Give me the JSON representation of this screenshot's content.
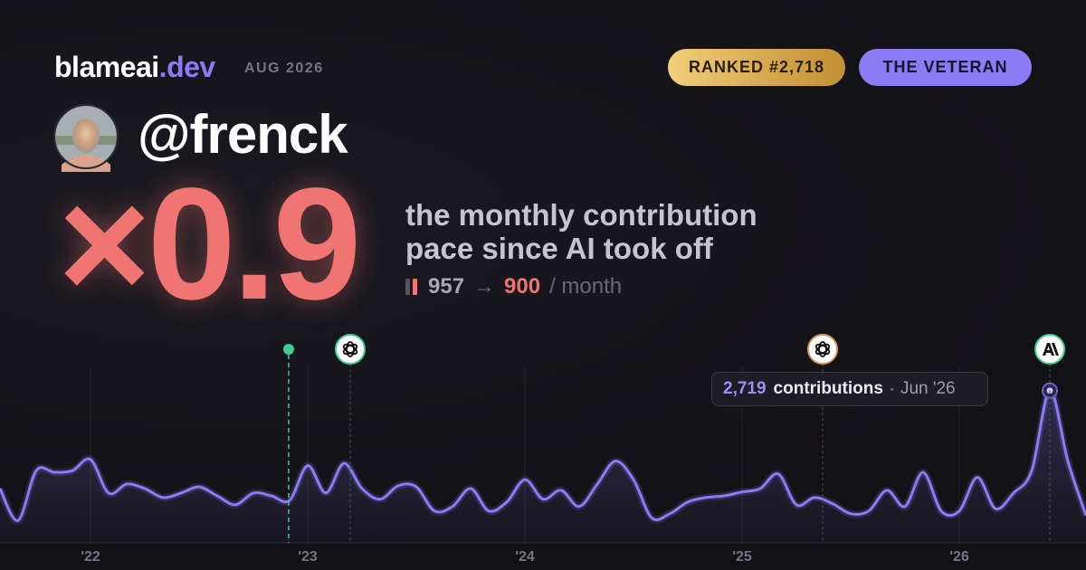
{
  "header": {
    "brand": "blameai",
    "brand_tld": ".dev",
    "period": "AUG 2026",
    "rank_badge": "RANKED #2,718",
    "title_badge": "THE VETERAN"
  },
  "profile": {
    "handle": "@frenck"
  },
  "headline": {
    "multiplier": "×0.9",
    "caption_line1": "the monthly contribution",
    "caption_line2": "pace since AI took off",
    "before": 957,
    "arrow": "→",
    "after": 900,
    "unit": "/ month"
  },
  "chart_data": {
    "type": "line",
    "categories": [
      null,
      null,
      null,
      null,
      null,
      "'22",
      null,
      null,
      null,
      null,
      null,
      null,
      null,
      null,
      null,
      null,
      null,
      "'23",
      null,
      null,
      null,
      null,
      null,
      null,
      null,
      null,
      null,
      null,
      null,
      "'24",
      null,
      null,
      null,
      null,
      null,
      null,
      null,
      null,
      null,
      null,
      null,
      "'25",
      null,
      null,
      null,
      null,
      null,
      null,
      null,
      null,
      null,
      null,
      null,
      "'26",
      null,
      null,
      null,
      null,
      null,
      null,
      null
    ],
    "series": [
      {
        "color": "#8b7cf6",
        "values": [
          970,
          400,
          1290,
          1260,
          1290,
          1490,
          890,
          1050,
          970,
          810,
          890,
          1000,
          840,
          680,
          890,
          840,
          760,
          1380,
          890,
          1420,
          970,
          780,
          1020,
          1000,
          570,
          650,
          970,
          570,
          730,
          1130,
          780,
          940,
          650,
          1050,
          1460,
          1130,
          450,
          520,
          730,
          810,
          840,
          910,
          970,
          1230,
          680,
          810,
          700,
          520,
          570,
          940,
          650,
          1260,
          570,
          570,
          1170,
          610,
          890,
          1290,
          2719,
          1460,
          490
        ],
        "value_labels": [
          null,
          null,
          null,
          null,
          null,
          null,
          null,
          null,
          null,
          null,
          null,
          null,
          null,
          null,
          null,
          null,
          null,
          null,
          null,
          null,
          null,
          null,
          null,
          null,
          null,
          null,
          null,
          null,
          null,
          null,
          null,
          null,
          null,
          null,
          null,
          null,
          null,
          null,
          null,
          null,
          null,
          null,
          null,
          null,
          null,
          null,
          null,
          null,
          null,
          null,
          null,
          null,
          null,
          null,
          null,
          null,
          null,
          null,
          "2,719",
          null,
          null
        ]
      }
    ],
    "tooltip": {
      "label": "contributions",
      "date": "Jun '26"
    },
    "highlight_index": 58,
    "ylim": [
      0,
      3200
    ]
  }
}
